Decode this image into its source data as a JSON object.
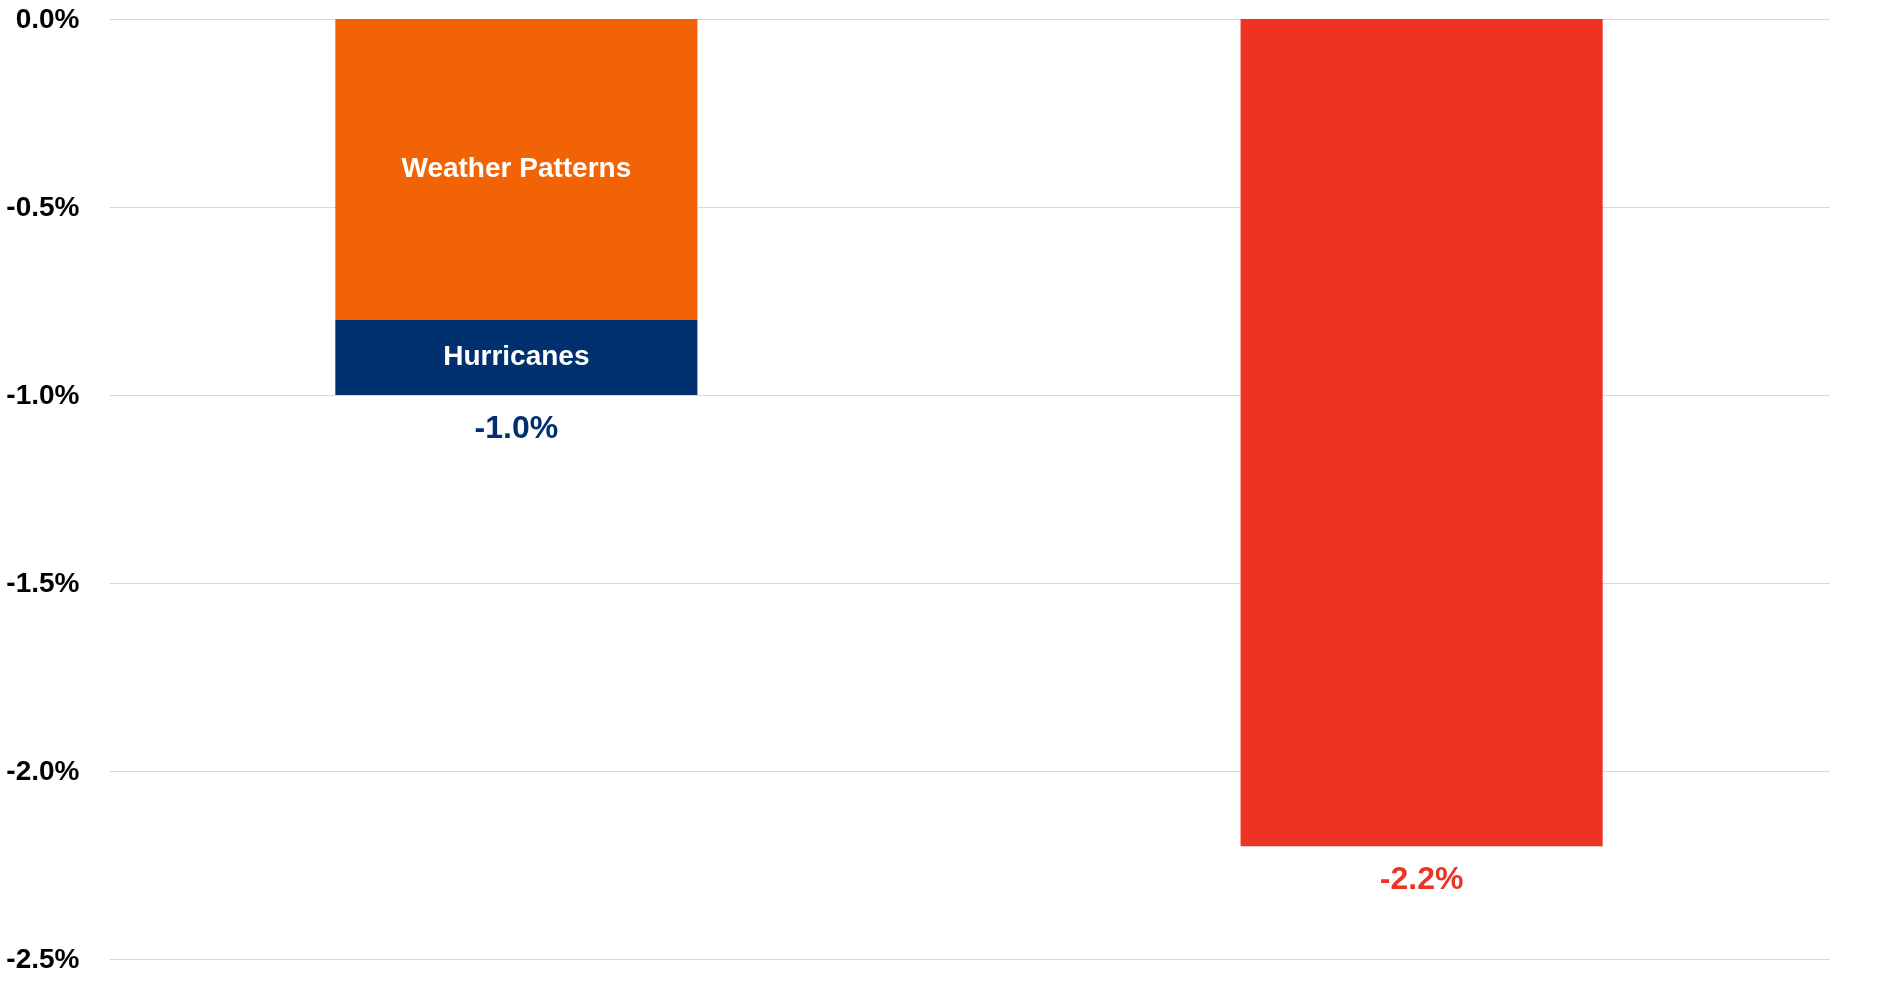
{
  "chart_data": {
    "type": "bar",
    "stacked": true,
    "categories": [
      null,
      null
    ],
    "series": [
      {
        "name": "Weather Patterns",
        "color": "#f26306",
        "values": [
          -0.8,
          null
        ]
      },
      {
        "name": "Hurricanes",
        "color": "#00306e",
        "values": [
          -0.2,
          null
        ]
      },
      {
        "color": "#ee3224",
        "values": [
          null,
          -2.2
        ]
      }
    ],
    "totals": [
      "-1.0%",
      "-2.2%"
    ],
    "ylim": [
      -2.5,
      0
    ],
    "yticks": [
      {
        "value": 0,
        "label": "0.0%"
      },
      {
        "value": -0.5,
        "label": "-0.5%"
      },
      {
        "value": -1.0,
        "label": "-1.0%"
      },
      {
        "value": -1.5,
        "label": "-1.5%"
      },
      {
        "value": -2.0,
        "label": "-2.0%"
      },
      {
        "value": -2.5,
        "label": "-2.5%"
      }
    ],
    "grid": "y",
    "tick_labels": "y"
  }
}
